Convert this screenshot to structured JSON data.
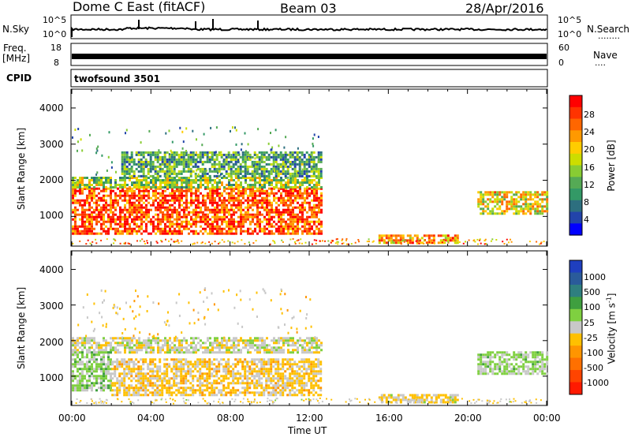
{
  "header": {
    "station": "Dome C East (fitACF)",
    "beam": "Beam 03",
    "date": "28/Apr/2016"
  },
  "sky_panel": {
    "left_label": "N.Sky",
    "left_ticks": [
      "10^5",
      "10^0"
    ],
    "right_ticks": [
      "10^5",
      "10^0"
    ],
    "right_label": "N.Search",
    "right_dots": "........"
  },
  "freq_panel": {
    "left_label_1": "Freq.",
    "left_label_2": "[MHz]",
    "left_ticks": [
      "18",
      "8"
    ],
    "right_ticks": [
      "60",
      "0"
    ],
    "right_label": "Nave",
    "right_dots": "...."
  },
  "cpid": {
    "label": "CPID",
    "value": "twofsound 3501"
  },
  "time_axis": {
    "ticks": [
      "00:00",
      "04:00",
      "08:00",
      "12:00",
      "16:00",
      "20:00",
      "00:00"
    ],
    "label": "Time UT"
  },
  "power_colorbar": {
    "label": "Power [dB]",
    "ticks": [
      "28",
      "24",
      "20",
      "16",
      "12",
      "8",
      "4"
    ],
    "colors": [
      "#ff0000",
      "#ff3300",
      "#ff6600",
      "#ff9900",
      "#ffcc00",
      "#ccdd00",
      "#88cc33",
      "#55aa55",
      "#339966",
      "#2d6f7f",
      "#2244aa",
      "#0000ff"
    ]
  },
  "velocity_colorbar": {
    "label_main": "Velocity [m s",
    "label_sup": "-1",
    "label_end": "]",
    "ticks": [
      "1000",
      "500",
      "100",
      "25",
      "-25",
      "-100",
      "-500",
      "-1000"
    ],
    "colors": [
      "#1f3fbf",
      "#2a5b9a",
      "#2f7f7f",
      "#3f9f3f",
      "#7fd040",
      "#c8c8c8",
      "#ffc000",
      "#ff9500",
      "#ff7000",
      "#ff4400",
      "#ff1a00"
    ]
  },
  "chart_data": [
    {
      "type": "heatmap",
      "title": "Power",
      "ylabel": "Slant Range [km]",
      "xlabel": "Time UT",
      "y_ticks": [
        "4000",
        "3000",
        "2000",
        "1000"
      ],
      "x_range_hours": [
        0,
        24
      ],
      "y_range_km": [
        200,
        4500
      ],
      "colorbar_range_db": [
        0,
        30
      ],
      "regions": [
        {
          "t0": 0.0,
          "t1": 12.6,
          "r0": 500,
          "r1": 1800,
          "value": 26
        },
        {
          "t0": 0.0,
          "t1": 12.6,
          "r0": 1800,
          "r1": 2100,
          "value": 14
        },
        {
          "t0": 2.5,
          "t1": 12.6,
          "r0": 2100,
          "r1": 2800,
          "value": 10
        },
        {
          "t0": 15.5,
          "t1": 19.5,
          "r0": 250,
          "r1": 500,
          "value": 22
        },
        {
          "t0": 20.5,
          "t1": 24.0,
          "r0": 1100,
          "r1": 1700,
          "value": 18
        }
      ]
    },
    {
      "type": "heatmap",
      "title": "Velocity",
      "ylabel": "Slant Range [km]",
      "xlabel": "Time UT",
      "y_ticks": [
        "4000",
        "3000",
        "2000",
        "1000"
      ],
      "x_range_hours": [
        0,
        24
      ],
      "y_range_km": [
        200,
        4500
      ],
      "colorbar_range_ms": [
        -1000,
        1000
      ],
      "regions": [
        {
          "t0": 0.0,
          "t1": 12.6,
          "r0": 1700,
          "r1": 2100,
          "value": 0
        },
        {
          "t0": 0.0,
          "t1": 2.0,
          "r0": 600,
          "r1": 1700,
          "value": 150
        },
        {
          "t0": 2.0,
          "t1": 12.6,
          "r0": 500,
          "r1": 1500,
          "value": -150
        },
        {
          "t0": 15.5,
          "t1": 19.5,
          "r0": 250,
          "r1": 500,
          "value": -80
        },
        {
          "t0": 20.5,
          "t1": 24.0,
          "r0": 1100,
          "r1": 1700,
          "value": 120
        }
      ]
    }
  ]
}
